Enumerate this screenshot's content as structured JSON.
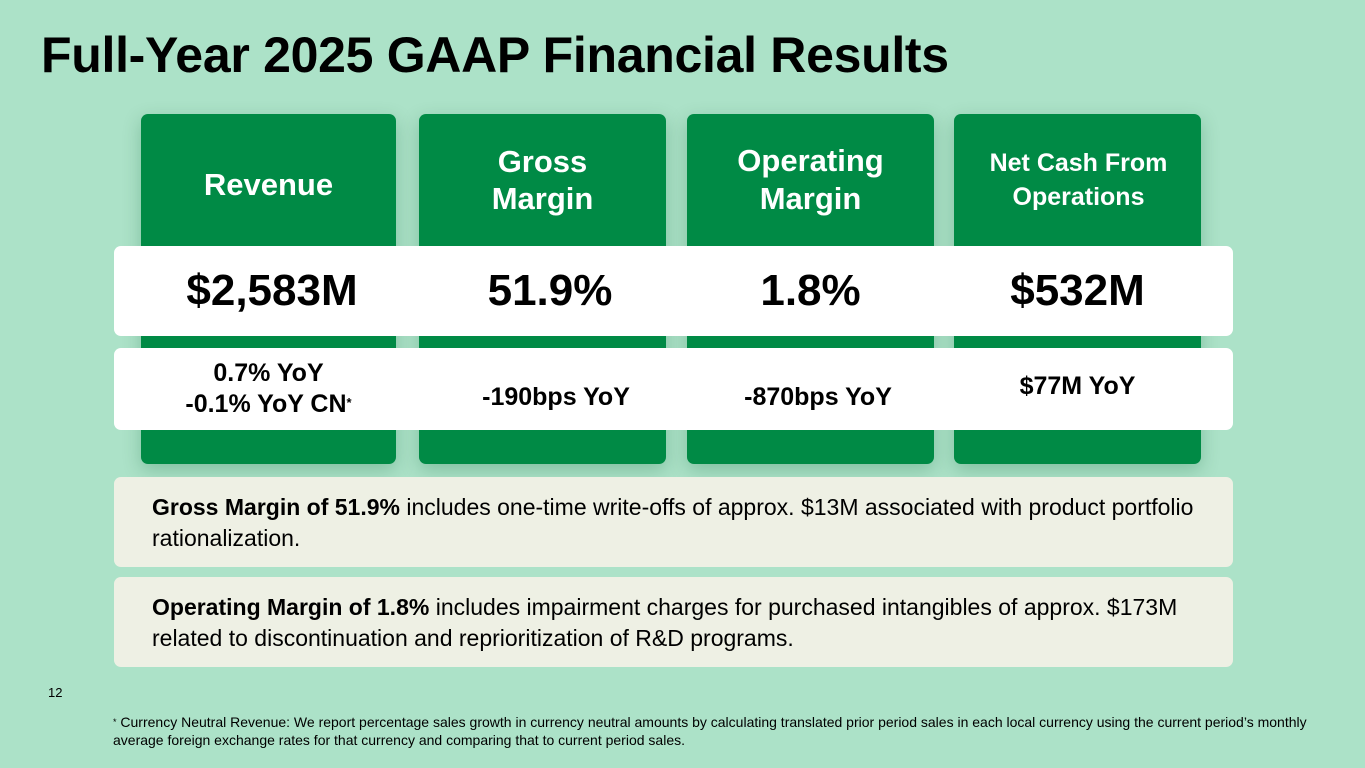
{
  "title": "Full-Year 2025 GAAP Financial Results",
  "cards": [
    {
      "heading_lines": [
        "Revenue"
      ],
      "value": "$2,583M",
      "yoy_line1": "0.7% YoY",
      "yoy_line2": "-0.1% YoY CN",
      "yoy_marker": "*"
    },
    {
      "heading_lines": [
        "Gross",
        "Margin"
      ],
      "value": "51.9%",
      "yoy_line1": "-190bps YoY"
    },
    {
      "heading_lines": [
        "Operating",
        "Margin"
      ],
      "value": "1.8%",
      "yoy_line1": "-870bps YoY"
    },
    {
      "heading_lines": [
        "Net Cash From",
        "Operations"
      ],
      "value": "$532M",
      "yoy_line1": "$77M YoY"
    }
  ],
  "notes": [
    {
      "bold": "Gross Margin of 51.9%",
      "text": " includes one-time write-offs of approx. $13M associated with product portfolio rationalization."
    },
    {
      "bold": "Operating Margin of 1.8%",
      "text": " includes impairment charges for purchased intangibles of approx. $173M related to discontinuation and reprioritization of R&D programs."
    }
  ],
  "page_number": "12",
  "footnote": {
    "marker": "*",
    "text": " Currency Neutral Revenue: We report percentage sales growth in currency neutral amounts by calculating translated prior period sales in each local currency using the current period’s monthly average foreign exchange rates for that currency and comparing that to current period sales."
  },
  "colors": {
    "background": "#ace2c8",
    "card_green": "#008a45",
    "band_white": "#ffffff",
    "note_bg": "#eef0e4"
  }
}
